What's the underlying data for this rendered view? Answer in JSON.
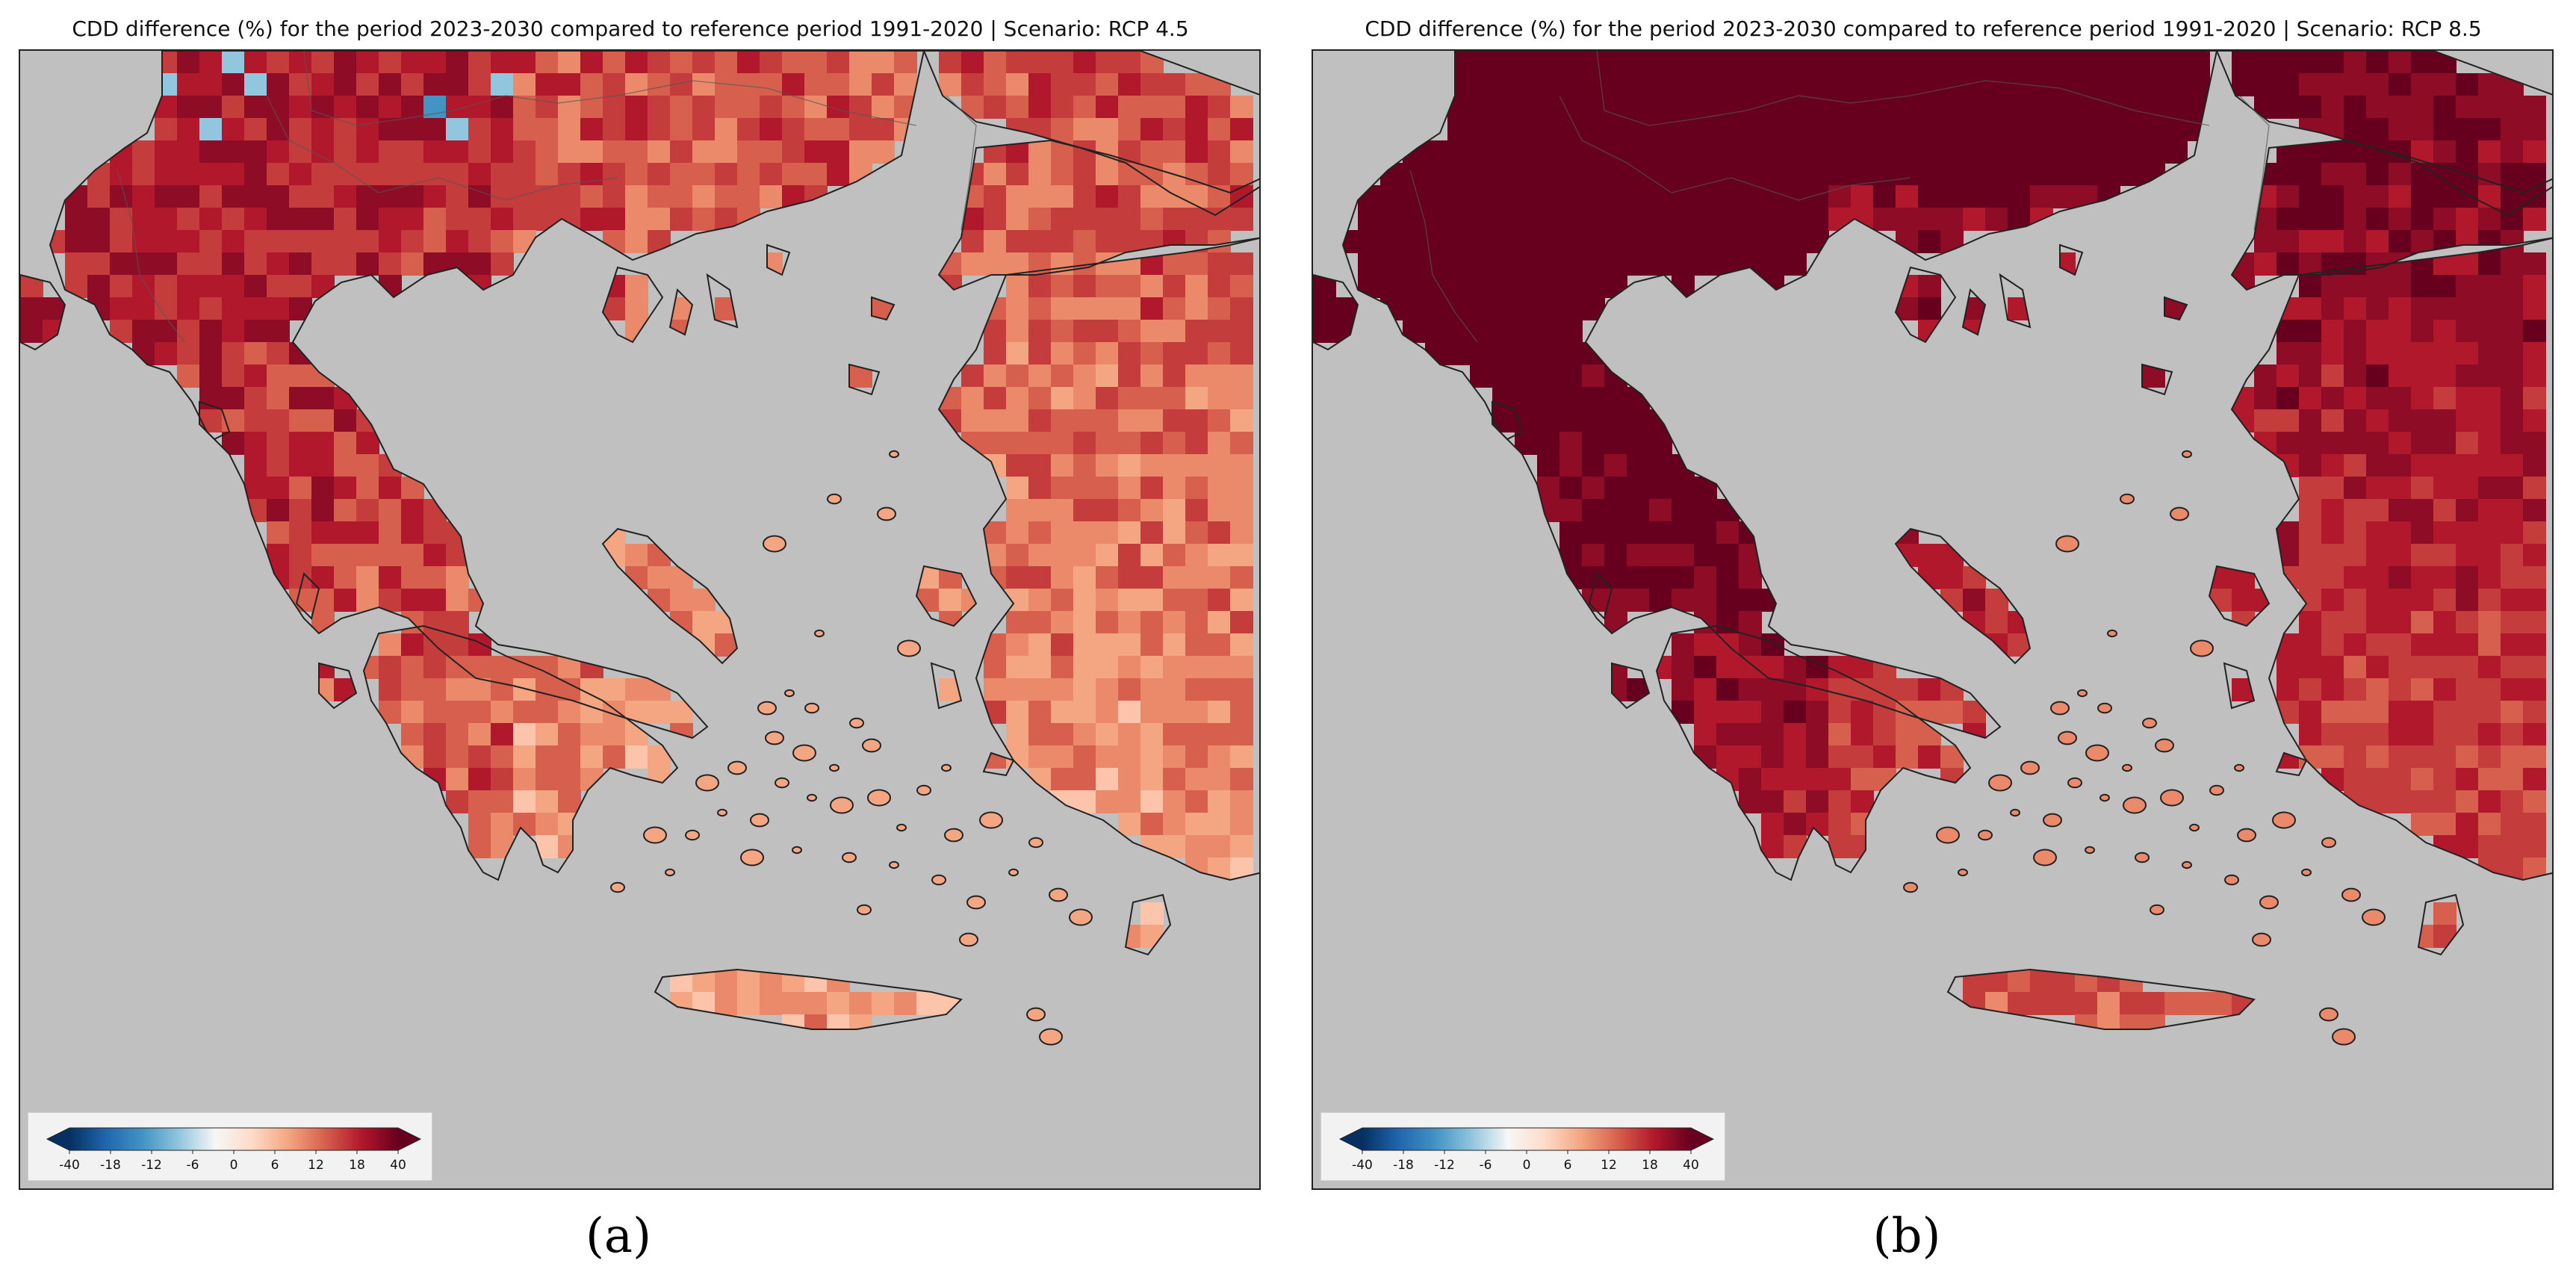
{
  "panels": [
    {
      "id": "a",
      "title": "CDD difference (%) for the period 2023-2030 compared to reference period 1991-2020 | Scenario: RCP 4.5",
      "scenario": "RCP 4.5",
      "label": "(a)",
      "intensity": "moderate"
    },
    {
      "id": "b",
      "title": "CDD difference (%) for the period 2023-2030 compared to reference period 1991-2020 | Scenario: RCP 8.5",
      "scenario": "RCP 8.5",
      "label": "(b)",
      "intensity": "high"
    }
  ],
  "colorbar": {
    "ticks": [
      "-40",
      "-18",
      "-12",
      "-6",
      "0",
      "6",
      "12",
      "18",
      "40"
    ],
    "colors": [
      "#053061",
      "#2166ac",
      "#4393c3",
      "#92c5de",
      "#f7f7f7",
      "#fddbc7",
      "#f4a582",
      "#d6604d",
      "#b2182b",
      "#67001f"
    ]
  },
  "map": {
    "sea_color": "#c0c0c0",
    "coast_color": "#222222"
  }
}
